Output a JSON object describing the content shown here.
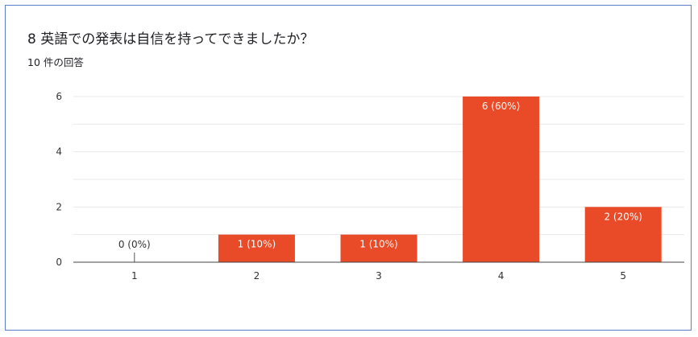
{
  "header": {
    "title": "8 英語での発表は自信を持ってできましたか？",
    "response_count": "10 件の回答"
  },
  "colors": {
    "bar": "#e94a27",
    "grid": "#e8e8e8",
    "axis": "#444444",
    "label_inside": "#ffffff",
    "label_outside": "#333333",
    "border": "#5b7fc8"
  },
  "chart_data": {
    "type": "bar",
    "categories": [
      "1",
      "2",
      "3",
      "4",
      "5"
    ],
    "values": [
      0,
      1,
      1,
      6,
      2
    ],
    "data_labels": [
      "0 (0%)",
      "1 (10%)",
      "1 (10%)",
      "6 (60%)",
      "2 (20%)"
    ],
    "yticks": [
      0,
      2,
      4,
      6
    ],
    "ylim": [
      0,
      6
    ],
    "grid": true,
    "legend": "none"
  }
}
